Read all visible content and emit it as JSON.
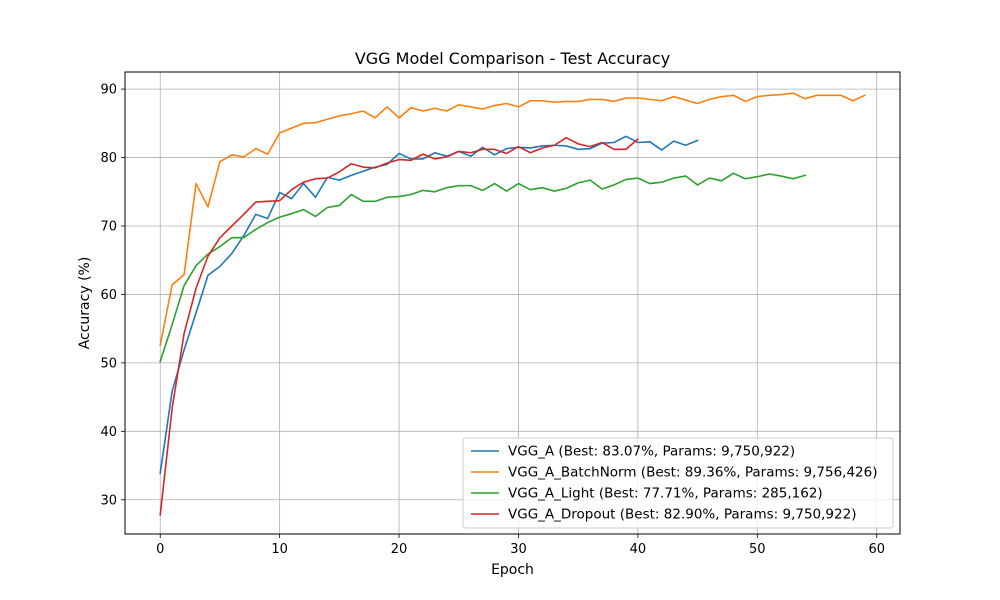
{
  "chart_data": {
    "type": "line",
    "title": "VGG Model Comparison - Test Accuracy",
    "xlabel": "Epoch",
    "ylabel": "Accuracy (%)",
    "xlim": [
      -2.95,
      61.95
    ],
    "ylim": [
      25.0,
      92.5
    ],
    "xticks": [
      0,
      10,
      20,
      30,
      40,
      50,
      60
    ],
    "yticks": [
      30,
      40,
      50,
      60,
      70,
      80,
      90
    ],
    "grid": true,
    "legend_position": "lower-right",
    "series": [
      {
        "name": "VGG_A (Best: 83.07%, Params: 9,750,922)",
        "color": "#1f77b4",
        "x_start": 0,
        "values": [
          33.9,
          45.9,
          51.9,
          57.3,
          62.8,
          64.1,
          66.0,
          68.6,
          71.7,
          71.1,
          74.9,
          74.0,
          76.2,
          74.2,
          77.1,
          76.7,
          77.4,
          78.0,
          78.6,
          79.0,
          80.6,
          79.8,
          79.8,
          80.7,
          80.2,
          80.9,
          80.2,
          81.5,
          80.4,
          81.3,
          81.5,
          81.4,
          81.7,
          81.8,
          81.7,
          81.2,
          81.3,
          82.1,
          82.2,
          83.1,
          82.2,
          82.3,
          81.1,
          82.4,
          81.8,
          82.5
        ]
      },
      {
        "name": "VGG_A_BatchNorm (Best: 89.36%, Params: 9,756,426)",
        "color": "#ff7f0e",
        "x_start": 0,
        "values": [
          52.6,
          61.4,
          62.9,
          76.2,
          72.8,
          79.4,
          80.4,
          80.1,
          81.3,
          80.5,
          83.6,
          84.3,
          85.0,
          85.1,
          85.6,
          86.1,
          86.4,
          86.8,
          85.8,
          87.4,
          85.8,
          87.3,
          86.8,
          87.2,
          86.8,
          87.7,
          87.4,
          87.1,
          87.6,
          87.9,
          87.4,
          88.3,
          88.3,
          88.1,
          88.2,
          88.2,
          88.5,
          88.5,
          88.2,
          88.7,
          88.7,
          88.5,
          88.3,
          88.9,
          88.4,
          87.9,
          88.5,
          88.9,
          89.1,
          88.2,
          88.9,
          89.1,
          89.2,
          89.4,
          88.6,
          89.1,
          89.1,
          89.1,
          88.3,
          89.1
        ]
      },
      {
        "name": "VGG_A_Light (Best: 77.71%, Params: 285,162)",
        "color": "#2ca02c",
        "x_start": 0,
        "values": [
          50.2,
          55.6,
          61.3,
          64.2,
          65.9,
          67.0,
          68.3,
          68.3,
          69.5,
          70.5,
          71.3,
          71.8,
          72.4,
          71.4,
          72.7,
          73.0,
          74.6,
          73.6,
          73.6,
          74.2,
          74.3,
          74.6,
          75.2,
          75.0,
          75.6,
          75.9,
          75.9,
          75.2,
          76.2,
          75.1,
          76.2,
          75.3,
          75.6,
          75.1,
          75.5,
          76.3,
          76.7,
          75.4,
          76.0,
          76.8,
          77.0,
          76.2,
          76.4,
          77.0,
          77.3,
          76.0,
          77.0,
          76.6,
          77.7,
          76.9,
          77.2,
          77.6,
          77.3,
          76.9,
          77.4
        ]
      },
      {
        "name": "VGG_A_Dropout (Best: 82.90%, Params: 9,750,922)",
        "color": "#d62728",
        "x_start": 0,
        "values": [
          27.8,
          43.4,
          54.3,
          60.9,
          65.6,
          68.3,
          70.0,
          71.7,
          73.5,
          73.6,
          73.7,
          75.3,
          76.4,
          76.9,
          77.0,
          77.9,
          79.1,
          78.6,
          78.5,
          79.2,
          79.7,
          79.6,
          80.5,
          79.8,
          80.1,
          80.9,
          80.7,
          81.2,
          81.2,
          80.6,
          81.6,
          80.7,
          81.4,
          81.8,
          82.9,
          82.0,
          81.6,
          82.2,
          81.2,
          81.2,
          82.7
        ]
      }
    ]
  }
}
